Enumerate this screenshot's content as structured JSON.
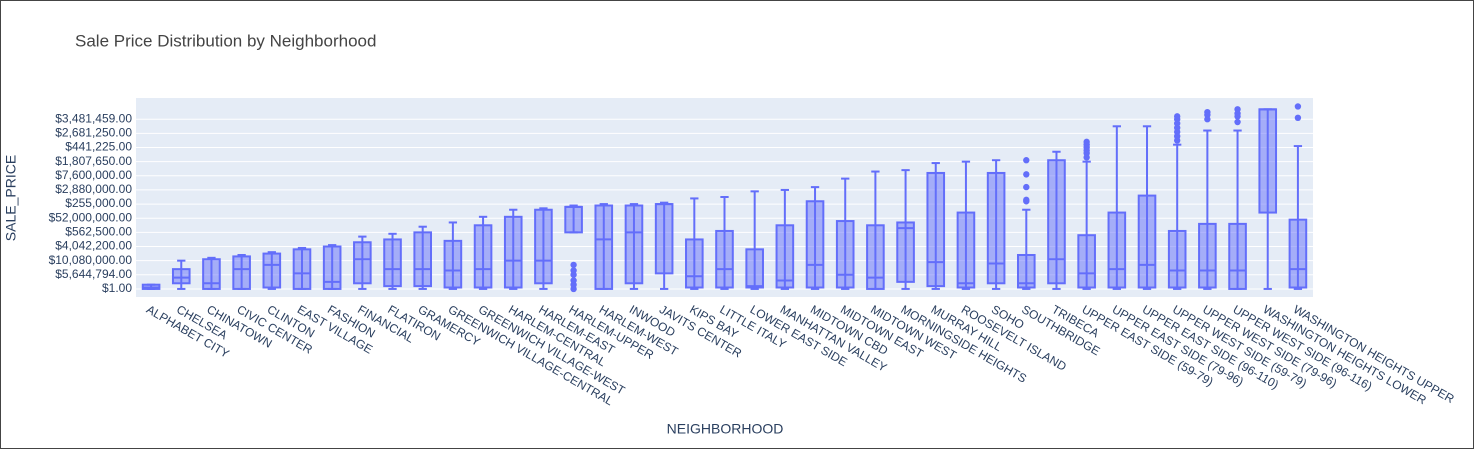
{
  "chart_data": {
    "type": "box",
    "title": "Sale Price Distribution by Neighborhood",
    "x_label": "NEIGHBORHOOD",
    "y_label": "SALE_PRICE",
    "color": "#636efa",
    "grid": true,
    "categories": [
      "ALPHABET CITY",
      "CHELSEA",
      "CHINATOWN",
      "CIVIC CENTER",
      "CLINTON",
      "EAST VILLAGE",
      "FASHION",
      "FINANCIAL",
      "FLATIRON",
      "GRAMERCY",
      "GREENWICH VILLAGE-CENTRAL",
      "GREENWICH VILLAGE-WEST",
      "HARLEM-CENTRAL",
      "HARLEM-EAST",
      "HARLEM-UPPER",
      "HARLEM-WEST",
      "INWOOD",
      "JAVITS CENTER",
      "KIPS BAY",
      "LITTLE ITALY",
      "LOWER EAST SIDE",
      "MANHATTAN VALLEY",
      "MIDTOWN CBD",
      "MIDTOWN EAST",
      "MIDTOWN WEST",
      "MORNINGSIDE HEIGHTS",
      "MURRAY HILL",
      "ROOSEVELT ISLAND",
      "SOHO",
      "SOUTHBRIDGE",
      "TRIBECA",
      "UPPER EAST SIDE (59-79)",
      "UPPER EAST SIDE (79-96)",
      "UPPER EAST SIDE (96-110)",
      "UPPER WEST SIDE (59-79)",
      "UPPER WEST SIDE (79-96)",
      "UPPER WEST SIDE (96-116)",
      "WASHINGTON HEIGHTS LOWER",
      "WASHINGTON HEIGHTS UPPER"
    ],
    "min": [
      0,
      0,
      0,
      0,
      0,
      0,
      0,
      0,
      0,
      0,
      0,
      0,
      0,
      0,
      4.0,
      0,
      0,
      0,
      0,
      0,
      0,
      0,
      0,
      0,
      0,
      0,
      0,
      0,
      0,
      0,
      0,
      0,
      0,
      0,
      0,
      0,
      0,
      0,
      0
    ],
    "q1": [
      0,
      0.4,
      0,
      0,
      0.1,
      0,
      0,
      0.4,
      0.2,
      0.2,
      0.1,
      0.1,
      0.1,
      0.4,
      4.0,
      0,
      0.4,
      1.1,
      0.1,
      0.1,
      0.1,
      0.1,
      0.1,
      0.1,
      0,
      0.5,
      0.2,
      0.1,
      0.4,
      0.1,
      0.4,
      0.1,
      0.1,
      0.1,
      0.1,
      0.1,
      0,
      5.4,
      0.1
    ],
    "median": [
      0.1,
      0.8,
      0.4,
      1.4,
      1.7,
      1.1,
      0.5,
      2.1,
      1.4,
      1.4,
      1.3,
      1.4,
      2.0,
      2.0,
      5.8,
      3.5,
      4.0,
      6.0,
      0.9,
      1.4,
      0.2,
      0.6,
      1.7,
      1.0,
      0.8,
      4.3,
      1.9,
      0.4,
      1.8,
      0.4,
      2.1,
      1.1,
      1.4,
      1.7,
      1.3,
      1.3,
      1.3,
      12.7,
      1.4
    ],
    "q3": [
      0.3,
      1.4,
      2.1,
      2.3,
      2.5,
      2.8,
      3.0,
      3.3,
      3.5,
      4.0,
      3.4,
      4.5,
      5.1,
      5.6,
      5.8,
      5.9,
      5.9,
      6.0,
      3.5,
      4.1,
      2.8,
      4.5,
      6.2,
      4.8,
      4.5,
      4.7,
      8.2,
      5.4,
      8.2,
      2.4,
      9.1,
      3.8,
      5.4,
      6.6,
      4.1,
      4.6,
      4.6,
      12.7,
      4.9
    ],
    "max": [
      0.3,
      2.0,
      2.2,
      2.4,
      2.6,
      2.9,
      3.1,
      3.7,
      3.9,
      4.4,
      4.7,
      5.1,
      5.6,
      5.7,
      5.9,
      6.0,
      6.0,
      6.1,
      6.4,
      6.5,
      6.9,
      7.0,
      7.2,
      7.8,
      8.3,
      8.4,
      8.9,
      9.0,
      9.1,
      5.6,
      9.7,
      9.0,
      11.5,
      11.5,
      10.2,
      11.2,
      11.2,
      12.7,
      10.1
    ],
    "outliers": [
      [],
      [],
      [],
      [],
      [],
      [],
      [],
      [],
      [],
      [],
      [],
      [],
      [],
      [],
      [
        1.7,
        1.3,
        1.0,
        0.6,
        0.3,
        0
      ],
      [],
      [],
      [],
      [],
      [],
      [],
      [],
      [],
      [],
      [],
      [],
      [],
      [],
      [],
      [
        9.1,
        8.1,
        7.2,
        6.3,
        6.2
      ],
      [],
      [
        10.4,
        10.2,
        10.0,
        9.8,
        9.6,
        9.3
      ],
      [],
      [],
      [
        12.2,
        12.0,
        11.7,
        11.4,
        11.1,
        10.8,
        10.5
      ],
      [
        12.5,
        12.3,
        12.0
      ],
      [
        12.7,
        12.4,
        12.2,
        11.8
      ],
      [],
      [
        12.9,
        12.1
      ]
    ],
    "ylim": [
      -0.57,
      13.5
    ],
    "yticks": [
      {
        "value": 0,
        "label": "$1.00"
      },
      {
        "value": 1,
        "label": "$5,644,794.00"
      },
      {
        "value": 2,
        "label": "$10,080,000.00"
      },
      {
        "value": 3,
        "label": "$4,042,200.00"
      },
      {
        "value": 4,
        "label": "$562,500.00"
      },
      {
        "value": 5,
        "label": "$52,000,000.00"
      },
      {
        "value": 6,
        "label": "$255,000.00"
      },
      {
        "value": 7,
        "label": "$2,880,000.00"
      },
      {
        "value": 8,
        "label": "$7,600,000.00"
      },
      {
        "value": 9,
        "label": "$1,807,650.00"
      },
      {
        "value": 10,
        "label": "$441,225.00"
      },
      {
        "value": 11,
        "label": "$2,681,250.00"
      },
      {
        "value": 12,
        "label": "$3,481,459.00"
      }
    ]
  }
}
